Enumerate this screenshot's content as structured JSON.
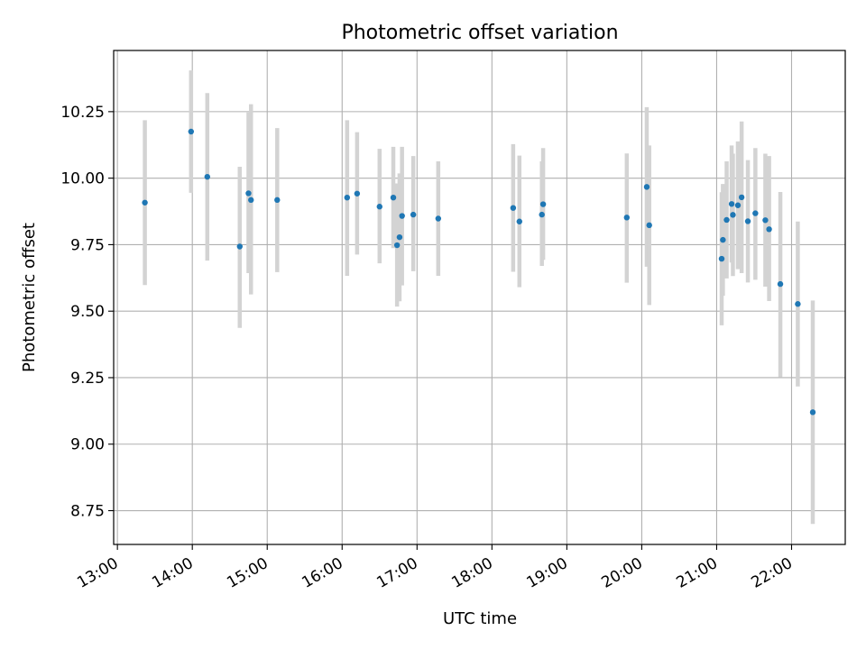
{
  "chart_data": {
    "type": "scatter",
    "title": "Photometric offset variation",
    "xlabel": "UTC time",
    "ylabel": "Photometric offset",
    "x_unit": "hours (UTC)",
    "xlim": [
      "12:57",
      "22:43"
    ],
    "ylim": [
      8.623,
      10.48
    ],
    "grid": true,
    "x_ticks": [
      "13:00",
      "14:00",
      "15:00",
      "16:00",
      "17:00",
      "18:00",
      "19:00",
      "20:00",
      "21:00",
      "22:00"
    ],
    "y_ticks": [
      "8.75",
      "9.00",
      "9.25",
      "9.50",
      "9.75",
      "10.00",
      "10.25"
    ],
    "colors": {
      "point": "#1f77b4",
      "errorbar": "#d3d3d3",
      "grid": "#b0b0b0",
      "axis": "#000000"
    },
    "points": [
      {
        "t": "13:22",
        "y": 9.908,
        "lo": 9.598,
        "hi": 10.218
      },
      {
        "t": "13:59",
        "y": 10.175,
        "lo": 9.945,
        "hi": 10.405
      },
      {
        "t": "14:12",
        "y": 10.005,
        "lo": 9.69,
        "hi": 10.32
      },
      {
        "t": "14:38",
        "y": 9.743,
        "lo": 9.437,
        "hi": 10.043
      },
      {
        "t": "14:45",
        "y": 9.943,
        "lo": 9.643,
        "hi": 10.247
      },
      {
        "t": "14:47",
        "y": 9.918,
        "lo": 9.563,
        "hi": 10.278
      },
      {
        "t": "15:08",
        "y": 9.918,
        "lo": 9.647,
        "hi": 10.188
      },
      {
        "t": "16:04",
        "y": 9.927,
        "lo": 9.633,
        "hi": 10.218
      },
      {
        "t": "16:12",
        "y": 9.942,
        "lo": 9.713,
        "hi": 10.173
      },
      {
        "t": "16:30",
        "y": 9.893,
        "lo": 9.68,
        "hi": 10.11
      },
      {
        "t": "16:41",
        "y": 9.927,
        "lo": 9.737,
        "hi": 10.118
      },
      {
        "t": "16:44",
        "y": 9.748,
        "lo": 9.517,
        "hi": 9.98
      },
      {
        "t": "16:46",
        "y": 9.778,
        "lo": 9.537,
        "hi": 10.018
      },
      {
        "t": "16:48",
        "y": 9.858,
        "lo": 9.597,
        "hi": 10.118
      },
      {
        "t": "16:57",
        "y": 9.863,
        "lo": 9.65,
        "hi": 10.083
      },
      {
        "t": "17:17",
        "y": 9.848,
        "lo": 9.633,
        "hi": 10.063
      },
      {
        "t": "18:17",
        "y": 9.888,
        "lo": 9.648,
        "hi": 10.128
      },
      {
        "t": "18:22",
        "y": 9.837,
        "lo": 9.59,
        "hi": 10.085
      },
      {
        "t": "18:40",
        "y": 9.863,
        "lo": 9.67,
        "hi": 10.063
      },
      {
        "t": "18:41",
        "y": 9.902,
        "lo": 9.693,
        "hi": 10.113
      },
      {
        "t": "19:48",
        "y": 9.852,
        "lo": 9.607,
        "hi": 10.093
      },
      {
        "t": "20:04",
        "y": 9.967,
        "lo": 9.667,
        "hi": 10.267
      },
      {
        "t": "20:06",
        "y": 9.823,
        "lo": 9.523,
        "hi": 10.123
      },
      {
        "t": "21:04",
        "y": 9.697,
        "lo": 9.447,
        "hi": 9.947
      },
      {
        "t": "21:05",
        "y": 9.768,
        "lo": 9.558,
        "hi": 9.978
      },
      {
        "t": "21:08",
        "y": 9.843,
        "lo": 9.623,
        "hi": 10.063
      },
      {
        "t": "21:12",
        "y": 9.903,
        "lo": 9.683,
        "hi": 10.123
      },
      {
        "t": "21:13",
        "y": 9.862,
        "lo": 9.632,
        "hi": 10.092
      },
      {
        "t": "21:17",
        "y": 9.898,
        "lo": 9.658,
        "hi": 10.138
      },
      {
        "t": "21:20",
        "y": 9.928,
        "lo": 9.643,
        "hi": 10.213
      },
      {
        "t": "21:25",
        "y": 9.838,
        "lo": 9.608,
        "hi": 10.068
      },
      {
        "t": "21:31",
        "y": 9.868,
        "lo": 9.618,
        "hi": 10.113
      },
      {
        "t": "21:39",
        "y": 9.842,
        "lo": 9.592,
        "hi": 10.092
      },
      {
        "t": "21:42",
        "y": 9.808,
        "lo": 9.538,
        "hi": 10.083
      },
      {
        "t": "21:51",
        "y": 9.602,
        "lo": 9.252,
        "hi": 9.948
      },
      {
        "t": "22:05",
        "y": 9.527,
        "lo": 9.217,
        "hi": 9.837
      },
      {
        "t": "22:17",
        "y": 9.12,
        "lo": 8.7,
        "hi": 9.54
      }
    ]
  }
}
